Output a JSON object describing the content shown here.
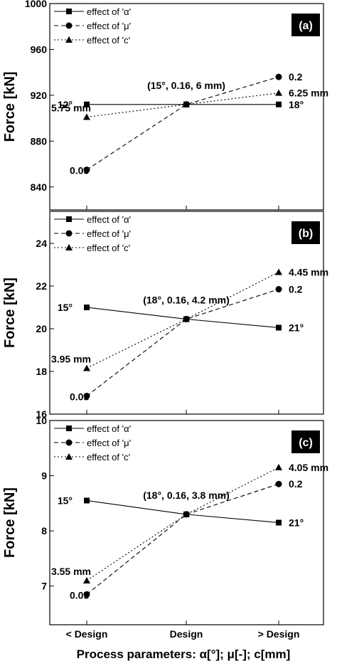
{
  "x_title": "Process parameters: α[°]; μ[-]; c[mm]",
  "legend": [
    "effect of 'α'",
    "effect of 'μ'",
    "effect of 'c'"
  ],
  "chart_data": [
    {
      "type": "line",
      "panel_label": "(a)",
      "ylabel": "Force [kN]",
      "ylim": [
        820,
        1000
      ],
      "yticks": [
        "840",
        "880",
        "920",
        "960",
        "1000"
      ],
      "categories": [
        "< Design",
        "Design",
        "> Design"
      ],
      "series": [
        {
          "name": "effect of 'α'",
          "values": [
            912,
            912,
            912
          ]
        },
        {
          "name": "effect of 'μ'",
          "values": [
            855,
            912,
            936
          ]
        },
        {
          "name": "effect of 'c'",
          "values": [
            901,
            912,
            922
          ]
        }
      ],
      "annotations": {
        "design": "(15°, 0.16, 6 mm)",
        "a_low": "12°",
        "a_high": "18°",
        "m_low": "0.05",
        "m_high": "0.2",
        "c_low": "5.75 mm",
        "c_high": "6.25 mm"
      }
    },
    {
      "type": "line",
      "panel_label": "(b)",
      "ylabel": "Force [kN]",
      "ylim": [
        16,
        25.5
      ],
      "yticks": [
        "16",
        "18",
        "20",
        "22",
        "24"
      ],
      "categories": [
        "< Design",
        "Design",
        "> Design"
      ],
      "series": [
        {
          "name": "effect of 'α'",
          "values": [
            21.0,
            20.45,
            20.05
          ]
        },
        {
          "name": "effect of 'μ'",
          "values": [
            16.85,
            20.45,
            21.85
          ]
        },
        {
          "name": "effect of 'c'",
          "values": [
            18.15,
            20.45,
            22.65
          ]
        }
      ],
      "annotations": {
        "design": "(18°, 0.16, 4.2 mm)",
        "a_low": "15°",
        "a_high": "21°",
        "m_low": "0.05",
        "m_high": "0.2",
        "c_low": "3.95 mm",
        "c_high": "4.45 mm"
      }
    },
    {
      "type": "line",
      "panel_label": "(c)",
      "ylabel": "Force [kN]",
      "ylim": [
        6.3,
        10
      ],
      "yticks": [
        "7",
        "8",
        "9",
        "10"
      ],
      "categories": [
        "< Design",
        "Design",
        "> Design"
      ],
      "series": [
        {
          "name": "effect of 'α'",
          "values": [
            8.55,
            8.3,
            8.15
          ]
        },
        {
          "name": "effect of 'μ'",
          "values": [
            6.85,
            8.3,
            8.85
          ]
        },
        {
          "name": "effect of 'c'",
          "values": [
            7.1,
            8.3,
            9.15
          ]
        }
      ],
      "annotations": {
        "design": "(18°, 0.16, 3.8 mm)",
        "a_low": "15°",
        "a_high": "21°",
        "m_low": "0.05",
        "m_high": "0.2",
        "c_low": "3.55 mm",
        "c_high": "4.05 mm"
      }
    }
  ]
}
